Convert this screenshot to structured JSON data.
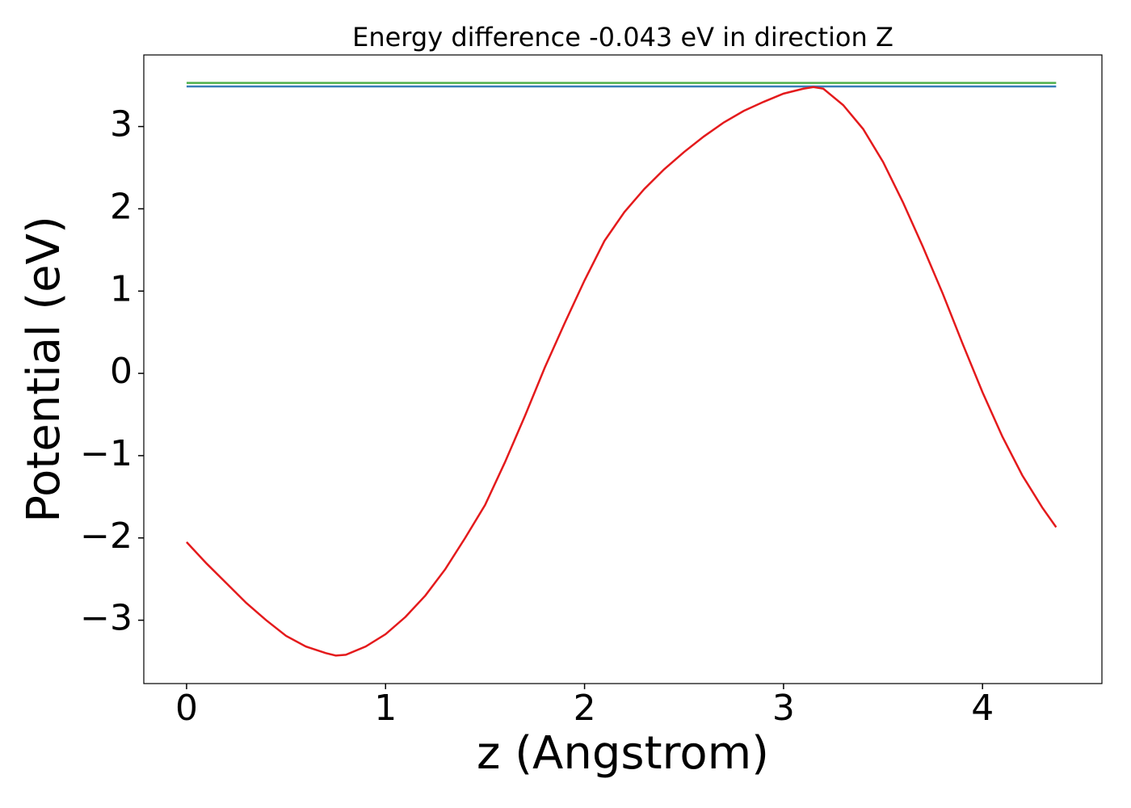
{
  "chart_data": {
    "type": "line",
    "title": "Energy difference -0.043 eV in direction Z",
    "xlabel": "z (Angstrom)",
    "ylabel": "Potential (eV)",
    "xlim": [
      -0.215,
      4.6
    ],
    "ylim": [
      -3.77,
      3.87
    ],
    "xticks": [
      0,
      1,
      2,
      3,
      4
    ],
    "yticks": [
      {
        "value": -3,
        "label": "−3"
      },
      {
        "value": -2,
        "label": "−2"
      },
      {
        "value": -1,
        "label": "−1"
      },
      0,
      1,
      2,
      3
    ],
    "grid": false,
    "series": [
      {
        "color": "#4daf4a",
        "x": [
          0,
          4.37
        ],
        "values": [
          3.53,
          3.53
        ]
      },
      {
        "color": "#377eb8",
        "x": [
          0,
          4.37
        ],
        "values": [
          3.487,
          3.487
        ]
      },
      {
        "color": "#e41a1c",
        "x": [
          0,
          0.1,
          0.2,
          0.3,
          0.4,
          0.5,
          0.6,
          0.7,
          0.75,
          0.8,
          0.9,
          1.0,
          1.1,
          1.2,
          1.3,
          1.4,
          1.5,
          1.6,
          1.7,
          1.8,
          1.9,
          2.0,
          2.1,
          2.2,
          2.3,
          2.4,
          2.5,
          2.6,
          2.7,
          2.8,
          2.9,
          3.0,
          3.1,
          3.15,
          3.2,
          3.3,
          3.4,
          3.5,
          3.6,
          3.7,
          3.8,
          3.9,
          4.0,
          4.1,
          4.2,
          4.3,
          4.37
        ],
        "values": [
          -2.05,
          -2.31,
          -2.55,
          -2.79,
          -3.0,
          -3.19,
          -3.32,
          -3.4,
          -3.43,
          -3.42,
          -3.32,
          -3.17,
          -2.96,
          -2.7,
          -2.38,
          -2.0,
          -1.6,
          -1.08,
          -0.52,
          0.07,
          0.61,
          1.13,
          1.61,
          1.96,
          2.24,
          2.48,
          2.69,
          2.88,
          3.05,
          3.19,
          3.3,
          3.4,
          3.46,
          3.48,
          3.46,
          3.26,
          2.97,
          2.57,
          2.08,
          1.54,
          0.97,
          0.36,
          -0.23,
          -0.77,
          -1.24,
          -1.63,
          -1.87
        ]
      }
    ]
  }
}
